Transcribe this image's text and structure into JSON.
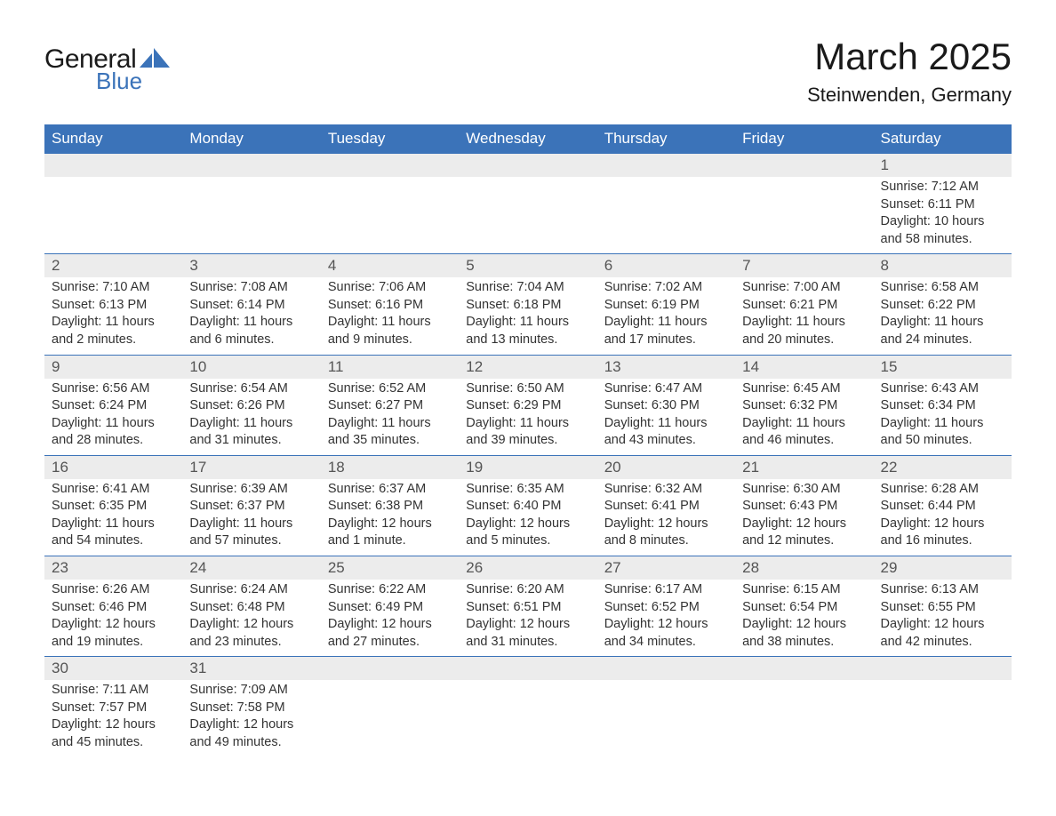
{
  "logo": {
    "text1": "General",
    "text2": "Blue",
    "shape_color": "#3b73b9"
  },
  "title": "March 2025",
  "location": "Steinwenden, Germany",
  "colors": {
    "header_bg": "#3b73b9",
    "header_text": "#ffffff",
    "daynum_bg": "#ececec",
    "row_border": "#3b73b9",
    "body_text": "#333333",
    "page_bg": "#ffffff"
  },
  "typography": {
    "title_fontsize": 42,
    "location_fontsize": 22,
    "weekday_fontsize": 17,
    "daynum_fontsize": 17,
    "body_fontsize": 14.5,
    "font_family": "Arial"
  },
  "weekdays": [
    "Sunday",
    "Monday",
    "Tuesday",
    "Wednesday",
    "Thursday",
    "Friday",
    "Saturday"
  ],
  "labels": {
    "sunrise": "Sunrise:",
    "sunset": "Sunset:",
    "daylight": "Daylight:"
  },
  "weeks": [
    [
      null,
      null,
      null,
      null,
      null,
      null,
      {
        "n": "1",
        "sunrise": "7:12 AM",
        "sunset": "6:11 PM",
        "daylight": "10 hours and 58 minutes."
      }
    ],
    [
      {
        "n": "2",
        "sunrise": "7:10 AM",
        "sunset": "6:13 PM",
        "daylight": "11 hours and 2 minutes."
      },
      {
        "n": "3",
        "sunrise": "7:08 AM",
        "sunset": "6:14 PM",
        "daylight": "11 hours and 6 minutes."
      },
      {
        "n": "4",
        "sunrise": "7:06 AM",
        "sunset": "6:16 PM",
        "daylight": "11 hours and 9 minutes."
      },
      {
        "n": "5",
        "sunrise": "7:04 AM",
        "sunset": "6:18 PM",
        "daylight": "11 hours and 13 minutes."
      },
      {
        "n": "6",
        "sunrise": "7:02 AM",
        "sunset": "6:19 PM",
        "daylight": "11 hours and 17 minutes."
      },
      {
        "n": "7",
        "sunrise": "7:00 AM",
        "sunset": "6:21 PM",
        "daylight": "11 hours and 20 minutes."
      },
      {
        "n": "8",
        "sunrise": "6:58 AM",
        "sunset": "6:22 PM",
        "daylight": "11 hours and 24 minutes."
      }
    ],
    [
      {
        "n": "9",
        "sunrise": "6:56 AM",
        "sunset": "6:24 PM",
        "daylight": "11 hours and 28 minutes."
      },
      {
        "n": "10",
        "sunrise": "6:54 AM",
        "sunset": "6:26 PM",
        "daylight": "11 hours and 31 minutes."
      },
      {
        "n": "11",
        "sunrise": "6:52 AM",
        "sunset": "6:27 PM",
        "daylight": "11 hours and 35 minutes."
      },
      {
        "n": "12",
        "sunrise": "6:50 AM",
        "sunset": "6:29 PM",
        "daylight": "11 hours and 39 minutes."
      },
      {
        "n": "13",
        "sunrise": "6:47 AM",
        "sunset": "6:30 PM",
        "daylight": "11 hours and 43 minutes."
      },
      {
        "n": "14",
        "sunrise": "6:45 AM",
        "sunset": "6:32 PM",
        "daylight": "11 hours and 46 minutes."
      },
      {
        "n": "15",
        "sunrise": "6:43 AM",
        "sunset": "6:34 PM",
        "daylight": "11 hours and 50 minutes."
      }
    ],
    [
      {
        "n": "16",
        "sunrise": "6:41 AM",
        "sunset": "6:35 PM",
        "daylight": "11 hours and 54 minutes."
      },
      {
        "n": "17",
        "sunrise": "6:39 AM",
        "sunset": "6:37 PM",
        "daylight": "11 hours and 57 minutes."
      },
      {
        "n": "18",
        "sunrise": "6:37 AM",
        "sunset": "6:38 PM",
        "daylight": "12 hours and 1 minute."
      },
      {
        "n": "19",
        "sunrise": "6:35 AM",
        "sunset": "6:40 PM",
        "daylight": "12 hours and 5 minutes."
      },
      {
        "n": "20",
        "sunrise": "6:32 AM",
        "sunset": "6:41 PM",
        "daylight": "12 hours and 8 minutes."
      },
      {
        "n": "21",
        "sunrise": "6:30 AM",
        "sunset": "6:43 PM",
        "daylight": "12 hours and 12 minutes."
      },
      {
        "n": "22",
        "sunrise": "6:28 AM",
        "sunset": "6:44 PM",
        "daylight": "12 hours and 16 minutes."
      }
    ],
    [
      {
        "n": "23",
        "sunrise": "6:26 AM",
        "sunset": "6:46 PM",
        "daylight": "12 hours and 19 minutes."
      },
      {
        "n": "24",
        "sunrise": "6:24 AM",
        "sunset": "6:48 PM",
        "daylight": "12 hours and 23 minutes."
      },
      {
        "n": "25",
        "sunrise": "6:22 AM",
        "sunset": "6:49 PM",
        "daylight": "12 hours and 27 minutes."
      },
      {
        "n": "26",
        "sunrise": "6:20 AM",
        "sunset": "6:51 PM",
        "daylight": "12 hours and 31 minutes."
      },
      {
        "n": "27",
        "sunrise": "6:17 AM",
        "sunset": "6:52 PM",
        "daylight": "12 hours and 34 minutes."
      },
      {
        "n": "28",
        "sunrise": "6:15 AM",
        "sunset": "6:54 PM",
        "daylight": "12 hours and 38 minutes."
      },
      {
        "n": "29",
        "sunrise": "6:13 AM",
        "sunset": "6:55 PM",
        "daylight": "12 hours and 42 minutes."
      }
    ],
    [
      {
        "n": "30",
        "sunrise": "7:11 AM",
        "sunset": "7:57 PM",
        "daylight": "12 hours and 45 minutes."
      },
      {
        "n": "31",
        "sunrise": "7:09 AM",
        "sunset": "7:58 PM",
        "daylight": "12 hours and 49 minutes."
      },
      null,
      null,
      null,
      null,
      null
    ]
  ]
}
